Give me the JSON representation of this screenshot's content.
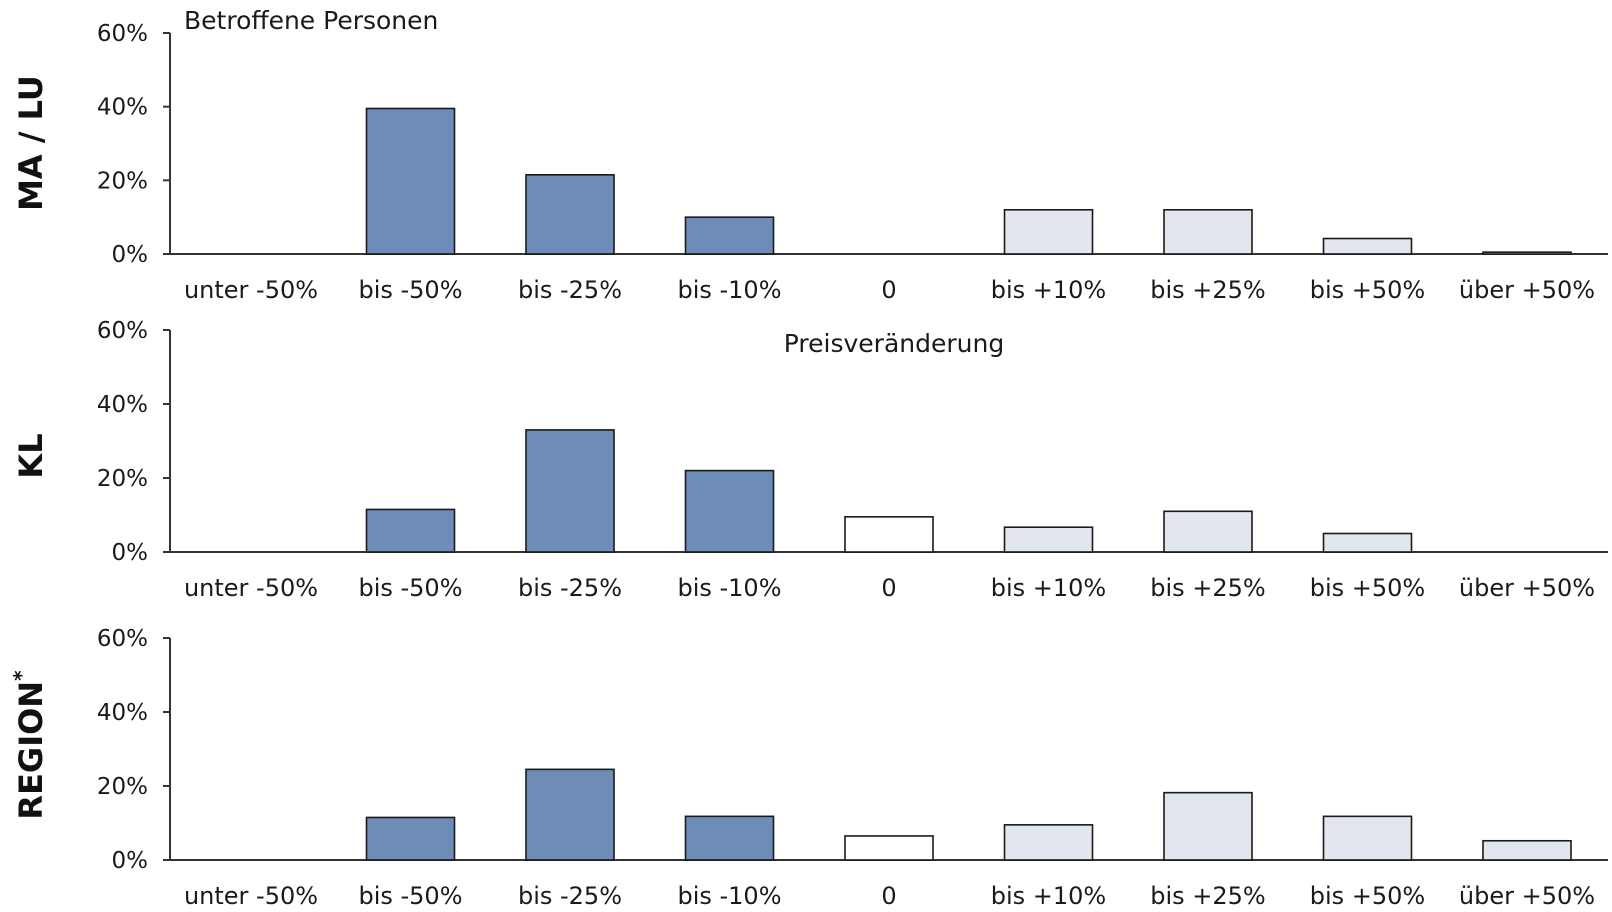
{
  "colors": {
    "decrease": "#6d8cb8",
    "zero": "#ffffff",
    "increase": "#e1e6ef"
  },
  "chart_data": {
    "type": "bar",
    "title": "Betroffene Personen",
    "xlabel": "Preisveränderung",
    "ylim": [
      0,
      60
    ],
    "yticks": [
      "0%",
      "20%",
      "40%",
      "60%"
    ],
    "categories": [
      "unter -50%",
      "bis -50%",
      "bis -25%",
      "bis -10%",
      "0",
      "bis +10%",
      "bis +25%",
      "bis +50%",
      "über +50%"
    ],
    "category_groups": [
      "decrease",
      "decrease",
      "decrease",
      "decrease",
      "zero",
      "increase",
      "increase",
      "increase",
      "increase"
    ],
    "series": [
      {
        "name": "MA / LU",
        "values": [
          0,
          39.5,
          21.5,
          10,
          0,
          12,
          12,
          4.2,
          0.5
        ]
      },
      {
        "name": "KL",
        "values": [
          0,
          11.5,
          33,
          22,
          9.5,
          6.7,
          11,
          5,
          0
        ]
      },
      {
        "name": "REGION",
        "name_sup": "*",
        "values": [
          0,
          11.5,
          24.5,
          11.8,
          6.5,
          9.5,
          18.2,
          11.8,
          5.2
        ]
      }
    ]
  }
}
